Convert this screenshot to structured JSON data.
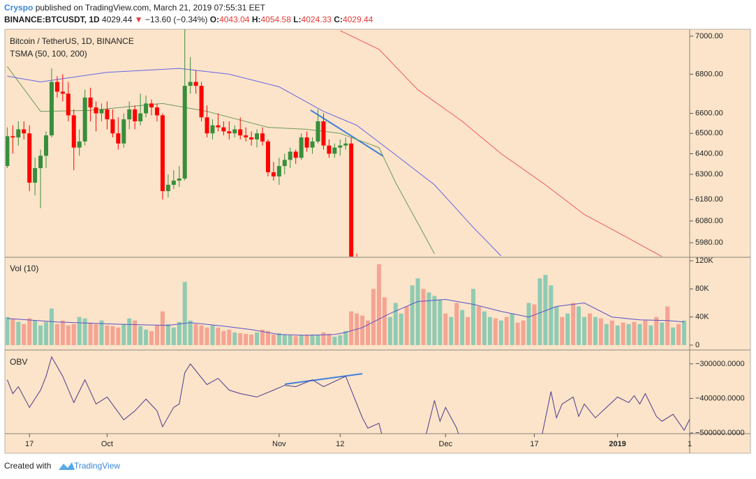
{
  "header": {
    "author": "Cryspo",
    "published": "published on TradingView.com, March 21, 2019 07:55:31 EET",
    "symbol": "BINANCE:BTCUSDT, 1D",
    "last": "4029.44",
    "arrow": "▼",
    "change": "−13.60 (−0.34%)",
    "open_label": "O:",
    "open": "4043.04",
    "high_label": "H:",
    "high": "4054.58",
    "low_label": "L:",
    "low": "4024.33",
    "close_label": "C:",
    "close": "4029.44"
  },
  "footer": {
    "text": "Created with",
    "brand": "TradingView"
  },
  "chart_data": [
    {
      "type": "candlestick",
      "title": "Bitcoin / TetherUS, 1D, BINANCE",
      "subtitle": "TSMA (50, 100, 200)",
      "log": true,
      "ylim": [
        5917,
        7037
      ],
      "xlim": [
        -0.3,
        123
      ],
      "up_color": "#388e3c",
      "down_color": "#ff0000",
      "yticks": [
        {
          "value": 7000,
          "label": "7000.00"
        },
        {
          "value": 6800,
          "label": "6800.00"
        },
        {
          "value": 6600,
          "label": "6600.00"
        },
        {
          "value": 6500,
          "label": "6500.00"
        },
        {
          "value": 6400,
          "label": "6400.00"
        },
        {
          "value": 6300,
          "label": "6300.00"
        },
        {
          "value": 6180,
          "label": "6180.00"
        },
        {
          "value": 6080,
          "label": "6080.00"
        },
        {
          "value": 5980,
          "label": "5980.00"
        }
      ],
      "open": [
        6340,
        6486,
        6480,
        6520,
        6500,
        6260,
        6330,
        6390,
        6490,
        6760,
        6710,
        6700,
        6590,
        6430,
        6460,
        6680,
        6630,
        6600,
        6620,
        6570,
        6500,
        6450,
        6570,
        6620,
        6560,
        6600,
        6650,
        6630,
        6590,
        6220,
        6250,
        6270,
        6280,
        6740,
        6760,
        6740,
        6580,
        6500,
        6540,
        6530,
        6510,
        6500,
        6520,
        6490,
        6480,
        6470,
        6500,
        6460,
        6310,
        6290,
        6340,
        6370,
        6410,
        6380,
        6480,
        6430,
        6460,
        6560,
        6440,
        6400,
        6430,
        6440,
        6450,
        5640
      ],
      "high": [
        6530,
        6540,
        6560,
        6560,
        6540,
        6380,
        6420,
        6510,
        6830,
        6790,
        6800,
        6760,
        6620,
        6520,
        6720,
        6730,
        6660,
        6650,
        6660,
        6620,
        6580,
        6600,
        6660,
        6640,
        6700,
        6690,
        6670,
        6650,
        6600,
        6300,
        6320,
        6340,
        7150,
        6890,
        6820,
        6760,
        6640,
        6570,
        6600,
        6560,
        6560,
        6540,
        6580,
        6530,
        6510,
        6520,
        6530,
        6470,
        6360,
        6380,
        6400,
        6430,
        6420,
        6500,
        6510,
        6480,
        6620,
        6600,
        6470,
        6450,
        6470,
        6480,
        6480,
        5930
      ],
      "low": [
        6330,
        6400,
        6440,
        6470,
        6220,
        6200,
        6140,
        6330,
        6480,
        6680,
        6660,
        6560,
        6320,
        6390,
        6440,
        6560,
        6510,
        6560,
        6520,
        6480,
        6420,
        6430,
        6520,
        6520,
        6540,
        6580,
        6590,
        6560,
        6180,
        6190,
        6230,
        6240,
        6270,
        6700,
        6700,
        6560,
        6480,
        6470,
        6510,
        6490,
        6470,
        6480,
        6470,
        6460,
        6440,
        6430,
        6440,
        6290,
        6270,
        6250,
        6300,
        6330,
        6350,
        6370,
        6410,
        6400,
        6450,
        6420,
        6380,
        6380,
        6390,
        6420,
        5500,
        5520
      ],
      "close": [
        6486,
        6480,
        6520,
        6500,
        6260,
        6330,
        6390,
        6490,
        6760,
        6710,
        6700,
        6590,
        6430,
        6460,
        6680,
        6630,
        6600,
        6620,
        6570,
        6500,
        6450,
        6570,
        6620,
        6560,
        6600,
        6650,
        6630,
        6590,
        6220,
        6250,
        6270,
        6280,
        6740,
        6760,
        6740,
        6580,
        6500,
        6540,
        6530,
        6510,
        6500,
        6520,
        6490,
        6480,
        6470,
        6500,
        6460,
        6310,
        6290,
        6340,
        6370,
        6410,
        6380,
        6480,
        6430,
        6460,
        6560,
        6440,
        6400,
        6430,
        6440,
        6450,
        5640,
        5600
      ],
      "overlays": [
        {
          "color": "#6b9a5b",
          "x": [
            0,
            6,
            15,
            28,
            36,
            47,
            54,
            60,
            67,
            70,
            74,
            77
          ],
          "values": [
            6840,
            6610,
            6615,
            6650,
            6610,
            6530,
            6520,
            6500,
            6430,
            6260,
            6070,
            5930
          ]
        },
        {
          "color": "#6464e6",
          "x": [
            0,
            6,
            18,
            31,
            40,
            49,
            57,
            63,
            69,
            77,
            84,
            89
          ],
          "values": [
            6790,
            6760,
            6810,
            6830,
            6800,
            6735,
            6610,
            6540,
            6415,
            6250,
            6050,
            5920
          ]
        },
        {
          "color": "#ee5a5a",
          "x": [
            60,
            67,
            74,
            82,
            89,
            97,
            104,
            112,
            118
          ],
          "values": [
            7030,
            6930,
            6720,
            6560,
            6400,
            6250,
            6110,
            6000,
            5917
          ]
        }
      ]
    },
    {
      "type": "bar",
      "title": "Vol (10)",
      "ylim": [
        -5000,
        124000
      ],
      "xlim": [
        -0.3,
        123
      ],
      "yticks": [
        {
          "value": 120000,
          "label": "120K"
        },
        {
          "value": 80000,
          "label": "80K"
        },
        {
          "value": 40000,
          "label": "40K"
        },
        0
      ],
      "values": [
        40000,
        37000,
        33000,
        30000,
        38000,
        35000,
        28000,
        33000,
        52000,
        30000,
        35000,
        28000,
        30000,
        40000,
        38000,
        32000,
        30000,
        35000,
        28000,
        27000,
        25000,
        30000,
        38000,
        35000,
        27000,
        22000,
        20000,
        28000,
        48000,
        30000,
        25000,
        33000,
        90000,
        35000,
        30000,
        28000,
        25000,
        28000,
        25000,
        20000,
        22000,
        18000,
        17000,
        16000,
        15000,
        18000,
        22000,
        20000,
        15000,
        17000,
        15000,
        14000,
        13000,
        14000,
        15000,
        15000,
        14000,
        18000,
        16000,
        12000,
        14000,
        20000,
        48000,
        45000,
        42000,
        35000,
        80000,
        115000,
        68000,
        40000,
        60000,
        45000,
        55000,
        85000,
        95000,
        80000,
        75000,
        70000,
        65000,
        45000,
        40000,
        60000,
        50000,
        40000,
        80000,
        55000,
        48000,
        40000,
        38000,
        35000,
        40000,
        45000,
        32000,
        35000,
        60000,
        58000,
        95000,
        100000,
        85000,
        55000,
        40000,
        45000,
        60000,
        55000,
        40000,
        45000,
        40000,
        38000,
        30000,
        35000,
        28000,
        32000,
        30000,
        33000,
        30000,
        35000,
        28000,
        40000,
        32000,
        55000,
        25000,
        30000,
        35000
      ],
      "colors": [
        "#8fcbb3",
        "#f5a493",
        "#8fcbb3",
        "#f5a493",
        "#f5a493",
        "#8fcbb3",
        "#8fcbb3",
        "#8fcbb3",
        "#8fcbb3",
        "#f5a493",
        "#f5a493",
        "#f5a493",
        "#f5a493",
        "#8fcbb3",
        "#8fcbb3",
        "#f5a493",
        "#f5a493",
        "#8fcbb3",
        "#f5a493",
        "#f5a493",
        "#f5a493",
        "#8fcbb3",
        "#8fcbb3",
        "#f5a493",
        "#8fcbb3",
        "#8fcbb3",
        "#f5a493",
        "#f5a493",
        "#f5a493",
        "#8fcbb3",
        "#8fcbb3",
        "#8fcbb3",
        "#8fcbb3",
        "#8fcbb3",
        "#f5a493",
        "#f5a493",
        "#f5a493",
        "#8fcbb3",
        "#f5a493",
        "#f5a493",
        "#f5a493",
        "#8fcbb3",
        "#f5a493",
        "#f5a493",
        "#f5a493",
        "#8fcbb3",
        "#f5a493",
        "#f5a493",
        "#f5a493",
        "#8fcbb3",
        "#8fcbb3",
        "#8fcbb3",
        "#f5a493",
        "#8fcbb3",
        "#f5a493",
        "#8fcbb3",
        "#8fcbb3",
        "#f5a493",
        "#f5a493",
        "#8fcbb3",
        "#8fcbb3",
        "#8fcbb3",
        "#f5a493",
        "#f5a493",
        "#f5a493",
        "#f5a493",
        "#f5a493",
        "#f5a493",
        "#f5a493",
        "#8fcbb3",
        "#8fcbb3",
        "#8fcbb3",
        "#f5a493",
        "#8fcbb3",
        "#8fcbb3",
        "#f5a493",
        "#8fcbb3",
        "#8fcbb3",
        "#8fcbb3",
        "#f5a493",
        "#8fcbb3",
        "#f5a493",
        "#8fcbb3",
        "#f5a493",
        "#8fcbb3",
        "#f5a493",
        "#8fcbb3",
        "#8fcbb3",
        "#f5a493",
        "#8fcbb3",
        "#f5a493",
        "#8fcbb3",
        "#f5a493",
        "#f5a493",
        "#8fcbb3",
        "#f5a493",
        "#8fcbb3",
        "#8fcbb3",
        "#8fcbb3",
        "#8fcbb3",
        "#f5a493",
        "#8fcbb3",
        "#f5a493",
        "#8fcbb3",
        "#8fcbb3",
        "#f5a493",
        "#8fcbb3",
        "#f5a493",
        "#8fcbb3",
        "#f5a493",
        "#8fcbb3",
        "#f5a493",
        "#8fcbb3",
        "#f5a493",
        "#8fcbb3",
        "#f5a493",
        "#8fcbb3",
        "#f5a493",
        "#8fcbb3",
        "#f5a493",
        "#8fcbb3",
        "#f5a493",
        "#8fcbb3"
      ],
      "ma": {
        "color": "#5a50c8",
        "x": [
          0,
          9,
          19,
          29,
          33,
          39,
          44,
          49,
          54,
          59,
          61,
          64,
          69,
          74,
          79,
          84,
          89,
          94,
          99,
          104,
          109,
          114,
          119,
          122
        ],
        "values": [
          38000,
          33000,
          30000,
          28000,
          32000,
          27000,
          22000,
          15000,
          14000,
          15000,
          18000,
          25000,
          45000,
          62000,
          65000,
          58000,
          48000,
          40000,
          55000,
          60000,
          40000,
          36000,
          35000,
          33000
        ]
      }
    },
    {
      "type": "line",
      "title": "OBV",
      "color": "#4b3a8c",
      "ylim": [
        -502000,
        -266000
      ],
      "xlim": [
        -0.3,
        123
      ],
      "yticks": [
        {
          "value": -300000,
          "label": "−300000.0000"
        },
        {
          "value": -400000,
          "label": "−400000.0000"
        },
        {
          "value": -500000,
          "label": "−500000.0000"
        }
      ],
      "xticks": [
        {
          "value": 4,
          "label": "17"
        },
        {
          "value": 18,
          "label": "Oct"
        },
        {
          "value": 49,
          "label": "Nov"
        },
        {
          "value": 60,
          "label": "12"
        },
        {
          "value": 79,
          "label": "Dec"
        },
        {
          "value": 95,
          "label": "17"
        },
        {
          "value": 110,
          "label": "2019"
        },
        {
          "value": 123,
          "label": "1"
        }
      ],
      "x": [
        0,
        1,
        2,
        4,
        6,
        7,
        8,
        10,
        12,
        14,
        16,
        18,
        21,
        23,
        25,
        27,
        28,
        30,
        31,
        32,
        33,
        36,
        38,
        40,
        42,
        45,
        48,
        50,
        52,
        55,
        57,
        61,
        62,
        64,
        65,
        67,
        68,
        75,
        77,
        78,
        79,
        81,
        82,
        96,
        98,
        99,
        100,
        102,
        103,
        104,
        106,
        108,
        110,
        112,
        113,
        114,
        115,
        117,
        118,
        120,
        122,
        123
      ],
      "values": [
        -346000,
        -386000,
        -366000,
        -426000,
        -376000,
        -336000,
        -280000,
        -336000,
        -412000,
        -346000,
        -416000,
        -396000,
        -462000,
        -436000,
        -402000,
        -436000,
        -482000,
        -426000,
        -416000,
        -326000,
        -300000,
        -360000,
        -342000,
        -376000,
        -386000,
        -396000,
        -376000,
        -362000,
        -366000,
        -346000,
        -366000,
        -336000,
        -376000,
        -456000,
        -486000,
        -472000,
        -536000,
        -536000,
        -406000,
        -466000,
        -426000,
        -486000,
        -536000,
        -536000,
        -380000,
        -456000,
        -416000,
        -396000,
        -452000,
        -416000,
        -456000,
        -426000,
        -396000,
        -412000,
        -392000,
        -416000,
        -386000,
        -452000,
        -466000,
        -446000,
        -492000,
        -460000
      ]
    }
  ]
}
